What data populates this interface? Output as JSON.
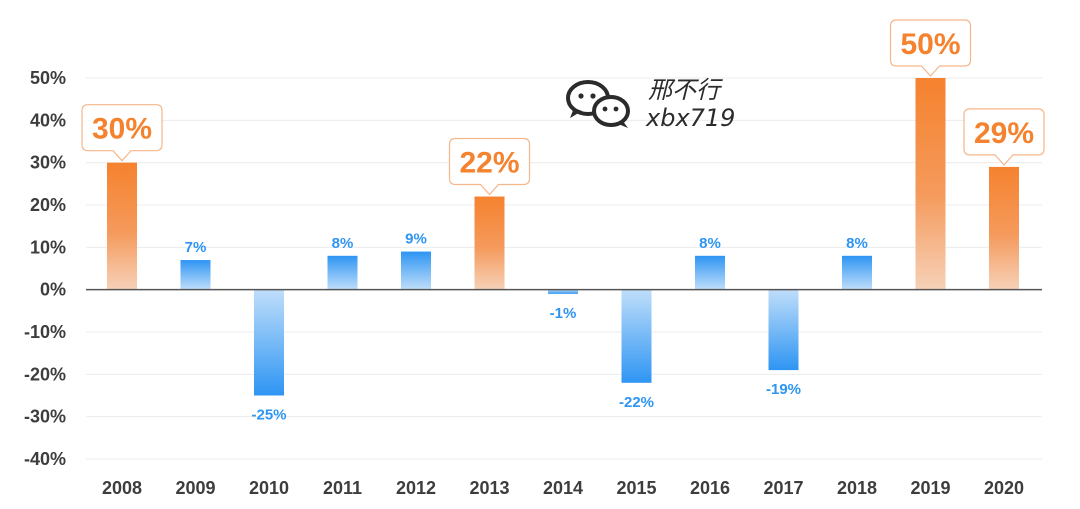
{
  "chart_data": {
    "type": "bar",
    "categories": [
      "2008",
      "2009",
      "2010",
      "2011",
      "2012",
      "2013",
      "2014",
      "2015",
      "2016",
      "2017",
      "2018",
      "2019",
      "2020"
    ],
    "values": [
      30,
      7,
      -25,
      8,
      9,
      22,
      -1,
      -22,
      8,
      -19,
      8,
      50,
      29
    ],
    "value_labels": [
      "30%",
      "7%",
      "-25%",
      "8%",
      "9%",
      "22%",
      "-1%",
      "-22%",
      "8%",
      "-19%",
      "8%",
      "50%",
      "29%"
    ],
    "highlighted": [
      true,
      false,
      false,
      false,
      false,
      true,
      false,
      false,
      false,
      false,
      false,
      true,
      true
    ],
    "ylim": [
      -40,
      50
    ],
    "yticks": [
      50,
      40,
      30,
      20,
      10,
      0,
      -10,
      -20,
      -30,
      -40
    ],
    "ytick_labels": [
      "50%",
      "40%",
      "30%",
      "20%",
      "10%",
      "0%",
      "-10%",
      "-20%",
      "-30%",
      "-40%"
    ],
    "grid": true,
    "colors": {
      "highlight": "#f5822e",
      "highlight_fade": "#f6d1b8",
      "normal": "#2e95f3",
      "normal_fade": "#bfdefa"
    }
  },
  "watermark": {
    "icon": "wechat-icon",
    "name": "邢不行",
    "id": "xbx719"
  }
}
